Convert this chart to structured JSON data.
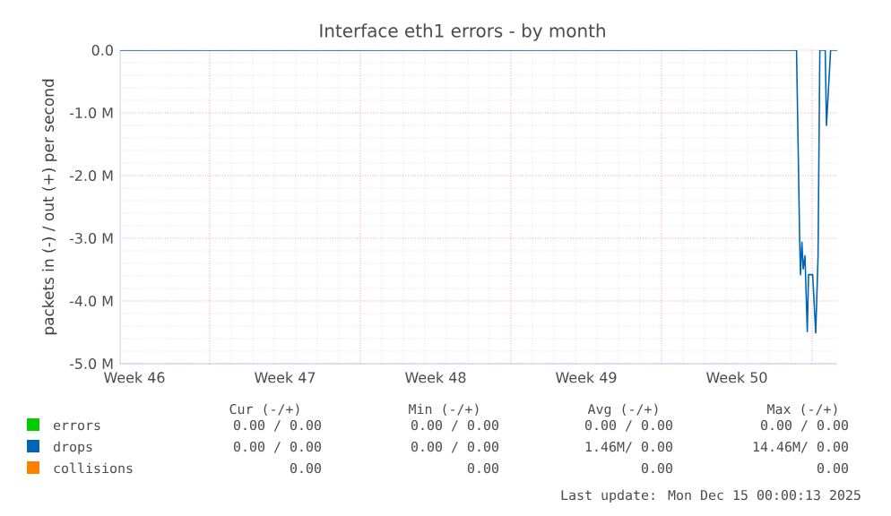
{
  "chart_data": {
    "type": "line",
    "title": "Interface eth1 errors - by month",
    "ylabel": "packets in (-) / out (+) per second",
    "xlim": [
      "2025-11-11T16:00",
      "2025-12-15T00:00"
    ],
    "ylim": [
      -5000000,
      0
    ],
    "xticks": [
      {
        "value": "2025-11-12T08:00",
        "label": "Week 46"
      },
      {
        "value": "2025-11-15T20:00",
        "label": null
      },
      {
        "value": "2025-11-19T08:00",
        "label": "Week 47"
      },
      {
        "value": "2025-11-22T20:00",
        "label": null
      },
      {
        "value": "2025-11-26T08:00",
        "label": "Week 48"
      },
      {
        "value": "2025-11-29T20:00",
        "label": null
      },
      {
        "value": "2025-12-03T08:00",
        "label": "Week 49"
      },
      {
        "value": "2025-12-06T20:00",
        "label": null
      },
      {
        "value": "2025-12-10T08:00",
        "label": "Week 50"
      },
      {
        "value": "2025-12-13T20:00",
        "label": null
      }
    ],
    "yticks": [
      {
        "value": 0,
        "label": "0.0"
      },
      {
        "value": -1000000,
        "label": "-1.0 M"
      },
      {
        "value": -2000000,
        "label": "-2.0 M"
      },
      {
        "value": -3000000,
        "label": "-3.0 M"
      },
      {
        "value": -4000000,
        "label": "-4.0 M"
      },
      {
        "value": -5000000,
        "label": "-5.0 M"
      }
    ],
    "grid": true,
    "legend": "bottom",
    "series": [
      {
        "name": "errors",
        "color": "#00cc00"
      },
      {
        "name": "drops",
        "color": "#0066b3",
        "x": [
          "2025-11-11T16:00",
          "2025-12-13T02:36",
          "2025-12-13T06:00",
          "2025-12-13T07:00",
          "2025-12-13T08:36",
          "2025-12-13T10:00",
          "2025-12-13T12:00",
          "2025-12-13T14:36",
          "2025-12-13T16:00",
          "2025-12-13T20:36",
          "2025-12-14T00:00",
          "2025-12-14T02:36",
          "2025-12-14T04:36",
          "2025-12-14T10:36",
          "2025-12-14T12:00",
          "2025-12-14T16:36",
          "2025-12-15T00:00"
        ],
        "values": [
          0,
          0,
          -2960000,
          -3580000,
          -3060000,
          -3490000,
          -3280000,
          -4490000,
          -3580000,
          -3580000,
          -4510000,
          -3290000,
          0,
          0,
          -1200000,
          0,
          0
        ]
      },
      {
        "name": "collisions",
        "color": "#ff8000"
      }
    ],
    "annotations": [
      "Cur (-/+)",
      "Min (-/+)",
      "Avg (-/+)",
      "Max (-/+)",
      "0.00 /  0.00",
      "0.00 /  0.00",
      "0.00 /  0.00",
      "0.00 /  0.00",
      "0.00 /  0.00",
      "0.00 /  0.00",
      "1.46M/  0.00",
      "14.46M/  0.00",
      "0.00",
      "0.00",
      "0.00",
      "0.00",
      "Last update: Mon Dec 15 00:00:13 2025"
    ]
  }
}
